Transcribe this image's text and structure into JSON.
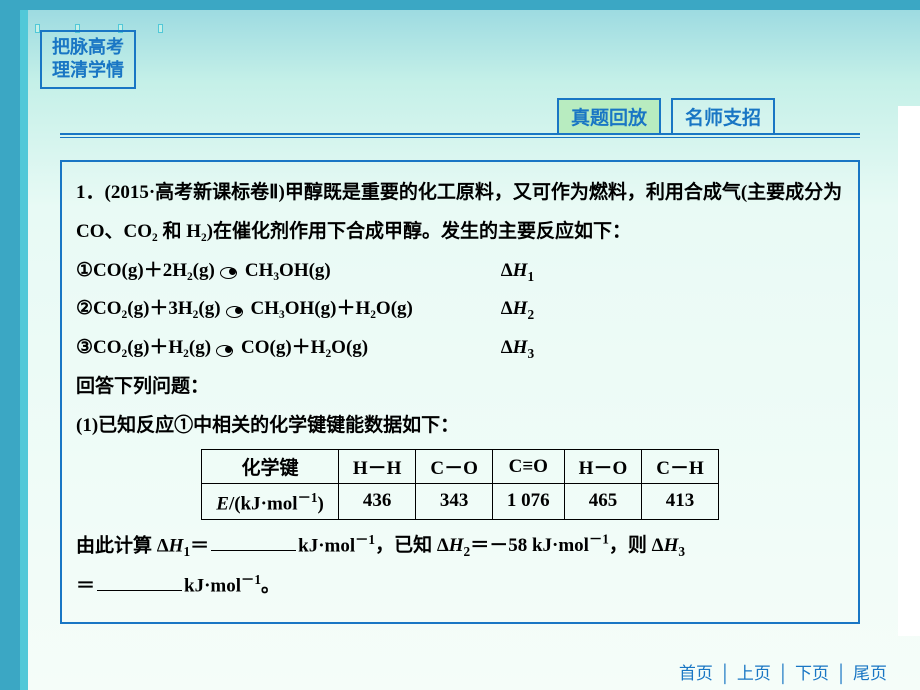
{
  "colors": {
    "brand": "#1976c4",
    "tab_active_bg": "#b8ecc0",
    "body_text": "#000000"
  },
  "badge": {
    "line1": "把脉高考",
    "line2": "理清学情"
  },
  "tabs": [
    {
      "label": "真题回放",
      "active": true
    },
    {
      "label": "名师支招",
      "active": false
    }
  ],
  "question": {
    "intro": "1．(2015·高考新课标卷Ⅱ)甲醇既是重要的化工原料，又可作为燃料，利用合成气(主要成分为 CO、CO₂ 和 H₂)在催化剂作用下合成甲醇。发生的主要反应如下：",
    "reactions": [
      {
        "num": "①",
        "lhs": "CO(g)＋2H₂(g)",
        "rhs": "CH₃OH(g)",
        "dH": "ΔH₁"
      },
      {
        "num": "②",
        "lhs": "CO₂(g)＋3H₂(g)",
        "rhs": "CH₃OH(g)＋H₂O(g)",
        "dH": "ΔH₂"
      },
      {
        "num": "③",
        "lhs": "CO₂(g)＋H₂(g)",
        "rhs": "CO(g)＋H₂O(g)",
        "dH": "ΔH₃"
      }
    ],
    "prompt1": "回答下列问题：",
    "sub1": "(1)已知反应①中相关的化学键键能数据如下：",
    "bond_table": {
      "header": [
        "化学键",
        "H－H",
        "C－O",
        "C≡O",
        "H－O",
        "C－H"
      ],
      "row_label": "E/(kJ·mol⁻¹)",
      "values": [
        "436",
        "343",
        "1 076",
        "465",
        "413"
      ]
    },
    "calc_line_a": "由此计算 Δ",
    "calc_line_b": "＝",
    "calc_unit": "kJ·mol⁻¹",
    "given_dH2": "，已知 ΔH₂＝－58 kJ·mol⁻¹，则 Δ",
    "tail1": "＝",
    "tail_unit": "kJ·mol⁻¹。"
  },
  "footer": {
    "home": "首页",
    "prev": "上页",
    "next": "下页",
    "last": "尾页"
  }
}
